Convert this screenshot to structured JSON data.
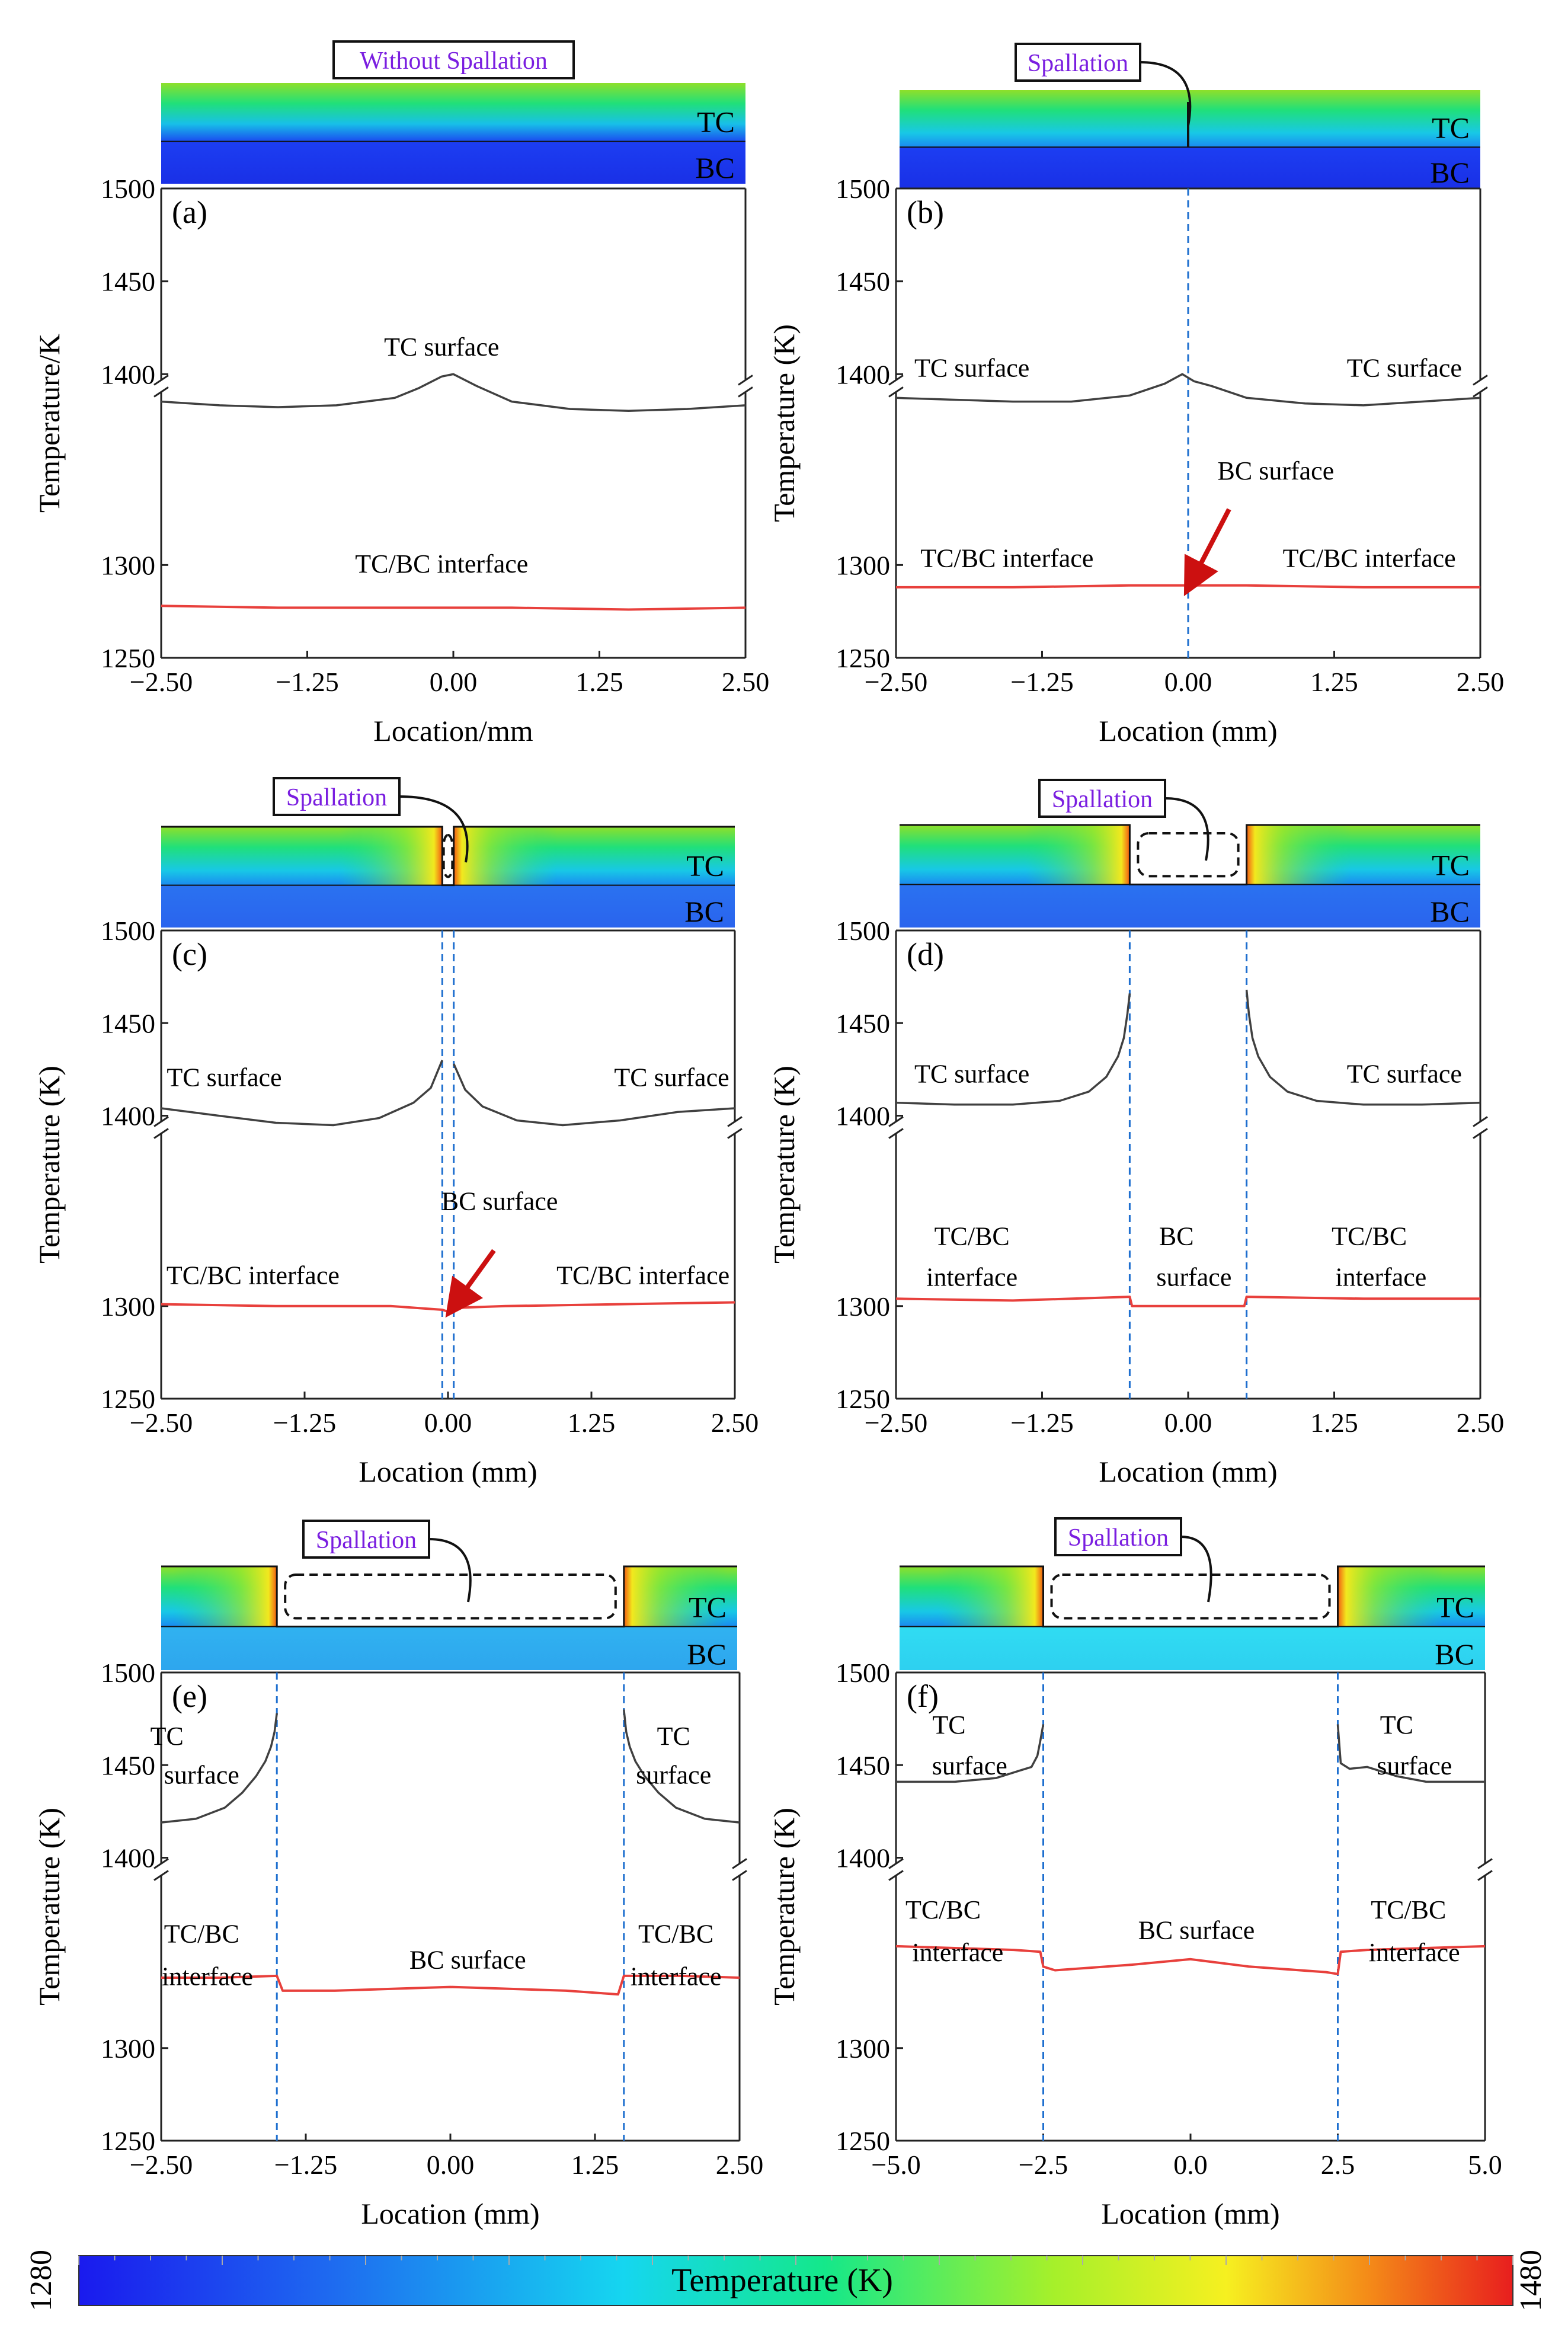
{
  "figure": {
    "colorbar": {
      "label": "Temperature (K)",
      "min_label": "1280",
      "max_label": "1480"
    }
  },
  "chart_data": [
    {
      "type": "line",
      "panel": "(a)",
      "inset": {
        "title": "Without Spallation",
        "tc": "TC",
        "bc": "BC"
      },
      "xlabel": "Location/mm",
      "ylabel": "Temperature/K",
      "xlim": [
        -2.5,
        2.5
      ],
      "xticks": [
        "-2.50",
        "-1.25",
        "0.00",
        "1.25",
        "2.50"
      ],
      "yticks": [
        "1250",
        "1300",
        "1400",
        "1450",
        "1500"
      ],
      "spall_lines": [],
      "annotations": [
        {
          "text": "TC surface",
          "x": -0.1,
          "y": 1410
        },
        {
          "text": "TC/BC interface",
          "x": -0.1,
          "y": 1296
        }
      ],
      "series": [
        {
          "color": "#404040",
          "x": [
            -2.5,
            -2.0,
            -1.5,
            -1.0,
            -0.5,
            -0.3,
            -0.1,
            0.0,
            0.2,
            0.5,
            1.0,
            1.5,
            2.0,
            2.5
          ],
          "y": [
            1388,
            1386,
            1385,
            1386,
            1390,
            1394,
            1399,
            1400,
            1395,
            1388,
            1384,
            1383,
            1384,
            1386
          ]
        },
        {
          "color": "#e8403c",
          "x": [
            -2.5,
            -1.5,
            -0.5,
            0.5,
            1.5,
            2.5
          ],
          "y": [
            1278,
            1277,
            1277,
            1277,
            1276,
            1277
          ]
        }
      ]
    },
    {
      "type": "line",
      "panel": "(b)",
      "inset": {
        "title": "Spallation",
        "tc": "TC",
        "bc": "BC"
      },
      "xlabel": "Location (mm)",
      "ylabel": "Temperature (K)",
      "xlim": [
        -2.5,
        2.5
      ],
      "xticks": [
        "-2.50",
        "-1.25",
        "0.00",
        "1.25",
        "2.50"
      ],
      "yticks": [
        "1250",
        "1300",
        "1400",
        "1450",
        "1500"
      ],
      "spall_lines": [
        0.0
      ],
      "annotations": [
        {
          "text": "TC surface",
          "x": -1.85,
          "y": 1399
        },
        {
          "text": "TC surface",
          "x": 1.85,
          "y": 1399
        },
        {
          "text": "BC surface",
          "x": 0.75,
          "y": 1346
        },
        {
          "text": "TC/BC interface",
          "x": -1.55,
          "y": 1299
        },
        {
          "text": "TC/BC interface",
          "x": 1.55,
          "y": 1299
        }
      ],
      "arrows": [
        {
          "x1": 0.35,
          "y1": 1330,
          "x2": 0.02,
          "y2": 1290
        }
      ],
      "series": [
        {
          "color": "#404040",
          "x": [
            -2.5,
            -2.0,
            -1.5,
            -1.0,
            -0.5,
            -0.2,
            -0.05,
            0.05,
            0.2,
            0.5,
            1.0,
            1.5,
            2.0,
            2.5
          ],
          "y": [
            1390,
            1389,
            1388,
            1388,
            1391,
            1396,
            1400,
            1397,
            1395,
            1390,
            1387,
            1386,
            1388,
            1390
          ]
        },
        {
          "color": "#e8403c",
          "x": [
            -2.5,
            -1.5,
            -0.5,
            0.0,
            0.5,
            1.5,
            2.5
          ],
          "y": [
            1288,
            1288,
            1289,
            1289,
            1289,
            1288,
            1288
          ]
        }
      ]
    },
    {
      "type": "line",
      "panel": "(c)",
      "inset": {
        "title": "Spallation",
        "tc": "TC",
        "bc": "BC"
      },
      "xlabel": "Location (mm)",
      "ylabel": "Temperature (K)",
      "xlim": [
        -2.5,
        2.5
      ],
      "xticks": [
        "-2.50",
        "-1.25",
        "0.00",
        "1.25",
        "2.50"
      ],
      "yticks": [
        "1250",
        "1300",
        "1400",
        "1450",
        "1500"
      ],
      "spall_lines": [
        -0.05,
        0.05
      ],
      "annotations": [
        {
          "text": "TC surface",
          "x": -1.95,
          "y": 1416
        },
        {
          "text": "TC surface",
          "x": 1.95,
          "y": 1416
        },
        {
          "text": "BC surface",
          "x": 0.45,
          "y": 1352
        },
        {
          "text": "TC/BC interface",
          "x": -1.7,
          "y": 1312
        },
        {
          "text": "TC/BC interface",
          "x": 1.7,
          "y": 1312
        }
      ],
      "arrows": [
        {
          "x1": 0.4,
          "y1": 1330,
          "x2": 0.05,
          "y2": 1300
        }
      ],
      "series": [
        {
          "color": "#404040",
          "x": [
            -2.5,
            -2.0,
            -1.5,
            -1.0,
            -0.6,
            -0.3,
            -0.15,
            -0.05
          ],
          "y": [
            1404,
            1400,
            1397,
            1396,
            1399,
            1407,
            1415,
            1430
          ]
        },
        {
          "color": "#404040",
          "x": [
            0.05,
            0.15,
            0.3,
            0.6,
            1.0,
            1.5,
            2.0,
            2.5
          ],
          "y": [
            1428,
            1414,
            1405,
            1398,
            1396,
            1398,
            1402,
            1404
          ]
        },
        {
          "color": "#e8403c",
          "x": [
            -2.5,
            -1.5,
            -0.5,
            -0.05,
            0.0,
            0.05,
            0.5,
            1.5,
            2.5
          ],
          "y": [
            1301,
            1300,
            1300,
            1298,
            1297,
            1299,
            1300,
            1301,
            1302
          ]
        }
      ]
    },
    {
      "type": "line",
      "panel": "(d)",
      "inset": {
        "title": "Spallation",
        "tc": "TC",
        "bc": "BC"
      },
      "xlabel": "Location (mm)",
      "ylabel": "Temperature (K)",
      "xlim": [
        -2.5,
        2.5
      ],
      "xticks": [
        "-2.50",
        "-1.25",
        "0.00",
        "1.25",
        "2.50"
      ],
      "yticks": [
        "1250",
        "1300",
        "1400",
        "1450",
        "1500"
      ],
      "spall_lines": [
        -0.5,
        0.5
      ],
      "annotations": [
        {
          "text": "TC surface",
          "x": -1.85,
          "y": 1418
        },
        {
          "text": "TC surface",
          "x": 1.85,
          "y": 1418
        },
        {
          "text": "TC/BC",
          "x": -1.85,
          "y": 1333
        },
        {
          "text": "interface",
          "x": -1.85,
          "y": 1311
        },
        {
          "text": "BC",
          "x": -0.1,
          "y": 1333
        },
        {
          "text": "surface",
          "x": 0.05,
          "y": 1311
        },
        {
          "text": "TC/BC",
          "x": 1.55,
          "y": 1333
        },
        {
          "text": "interface",
          "x": 1.65,
          "y": 1311
        }
      ],
      "series": [
        {
          "color": "#404040",
          "x": [
            -2.5,
            -2.0,
            -1.5,
            -1.1,
            -0.85,
            -0.7,
            -0.6,
            -0.55,
            -0.52,
            -0.5
          ],
          "y": [
            1407,
            1406,
            1406,
            1408,
            1413,
            1421,
            1432,
            1442,
            1455,
            1466
          ]
        },
        {
          "color": "#404040",
          "x": [
            0.5,
            0.52,
            0.55,
            0.6,
            0.7,
            0.85,
            1.1,
            1.5,
            2.0,
            2.5
          ],
          "y": [
            1468,
            1455,
            1442,
            1432,
            1421,
            1413,
            1408,
            1406,
            1406,
            1407
          ]
        },
        {
          "color": "#e8403c",
          "x": [
            -2.5,
            -1.5,
            -0.5,
            -0.48,
            0.0,
            0.48,
            0.5,
            1.5,
            2.5
          ],
          "y": [
            1304,
            1303,
            1305,
            1300,
            1300,
            1300,
            1305,
            1304,
            1304
          ]
        }
      ]
    },
    {
      "type": "line",
      "panel": "(e)",
      "inset": {
        "title": "Spallation",
        "tc": "TC",
        "bc": "BC"
      },
      "xlabel": "Location (mm)",
      "ylabel": "Temperature (K)",
      "xlim": [
        -2.5,
        2.5
      ],
      "xticks": [
        "-2.50",
        "-1.25",
        "0.00",
        "1.25",
        "2.50"
      ],
      "yticks": [
        "1250",
        "1300",
        "1400",
        "1450",
        "1500"
      ],
      "spall_lines": [
        -1.5,
        1.5
      ],
      "annotations": [
        {
          "text": "TC",
          "x": -2.45,
          "y": 1461
        },
        {
          "text": "surface",
          "x": -2.15,
          "y": 1440
        },
        {
          "text": "TC",
          "x": 1.93,
          "y": 1461
        },
        {
          "text": "surface",
          "x": 1.93,
          "y": 1440
        },
        {
          "text": "TC/BC",
          "x": -2.15,
          "y": 1357
        },
        {
          "text": "interface",
          "x": -2.1,
          "y": 1334
        },
        {
          "text": "BC surface",
          "x": 0.15,
          "y": 1343
        },
        {
          "text": "TC/BC",
          "x": 1.95,
          "y": 1357
        },
        {
          "text": "interface",
          "x": 1.95,
          "y": 1334
        }
      ],
      "series": [
        {
          "color": "#404040",
          "x": [
            -2.5,
            -2.2,
            -1.95,
            -1.8,
            -1.68,
            -1.6,
            -1.55,
            -1.52,
            -1.5
          ],
          "y": [
            1419,
            1421,
            1427,
            1435,
            1444,
            1452,
            1460,
            1468,
            1478
          ]
        },
        {
          "color": "#404040",
          "x": [
            1.5,
            1.52,
            1.55,
            1.6,
            1.68,
            1.8,
            1.95,
            2.2,
            2.5
          ],
          "y": [
            1480,
            1468,
            1460,
            1452,
            1444,
            1435,
            1427,
            1421,
            1419
          ]
        },
        {
          "color": "#e8403c",
          "x": [
            -2.5,
            -2.0,
            -1.5,
            -1.45,
            -1.0,
            0.0,
            1.0,
            1.45,
            1.5,
            2.0,
            2.5
          ],
          "y": [
            1338,
            1338,
            1339,
            1331,
            1331,
            1333,
            1331,
            1329,
            1339,
            1339,
            1338
          ]
        }
      ]
    },
    {
      "type": "line",
      "panel": "(f)",
      "inset": {
        "title": "Spallation",
        "tc": "TC",
        "bc": "BC"
      },
      "xlabel": "Location (mm)",
      "ylabel": "Temperature (K)",
      "xlim": [
        -5.0,
        5.0
      ],
      "xticks": [
        "-5.0",
        "-2.5",
        "0.0",
        "2.5",
        "5.0"
      ],
      "yticks": [
        "1250",
        "1300",
        "1400",
        "1450",
        "1500"
      ],
      "spall_lines": [
        -2.5,
        2.5
      ],
      "annotations": [
        {
          "text": "TC",
          "x": -4.1,
          "y": 1467
        },
        {
          "text": "surface",
          "x": -3.75,
          "y": 1445
        },
        {
          "text": "TC",
          "x": 3.5,
          "y": 1467
        },
        {
          "text": "surface",
          "x": 3.8,
          "y": 1445
        },
        {
          "text": "TC/BC",
          "x": -4.2,
          "y": 1370
        },
        {
          "text": "interface",
          "x": -3.95,
          "y": 1347
        },
        {
          "text": "BC surface",
          "x": 0.1,
          "y": 1359
        },
        {
          "text": "TC/BC",
          "x": 3.7,
          "y": 1370
        },
        {
          "text": "interface",
          "x": 3.8,
          "y": 1347
        }
      ],
      "series": [
        {
          "color": "#404040",
          "x": [
            -5.0,
            -4.0,
            -3.3,
            -2.9,
            -2.7,
            -2.6,
            -2.55,
            -2.5
          ],
          "y": [
            1441,
            1441,
            1443,
            1447,
            1449,
            1455,
            1463,
            1472
          ]
        },
        {
          "color": "#404040",
          "x": [
            2.5,
            2.55,
            2.7,
            3.0,
            3.5,
            4.0,
            5.0
          ],
          "y": [
            1472,
            1451,
            1448,
            1449,
            1444,
            1441,
            1441
          ]
        },
        {
          "color": "#e8403c",
          "x": [
            -5.0,
            -4.0,
            -3.0,
            -2.55,
            -2.5,
            -2.3,
            -1.0,
            0.0,
            1.0,
            2.3,
            2.5,
            2.55,
            3.0,
            4.0,
            5.0
          ],
          "y": [
            1355,
            1354,
            1353,
            1352,
            1344,
            1342,
            1345,
            1348,
            1344,
            1341,
            1340,
            1352,
            1353,
            1354,
            1355
          ]
        }
      ]
    }
  ]
}
